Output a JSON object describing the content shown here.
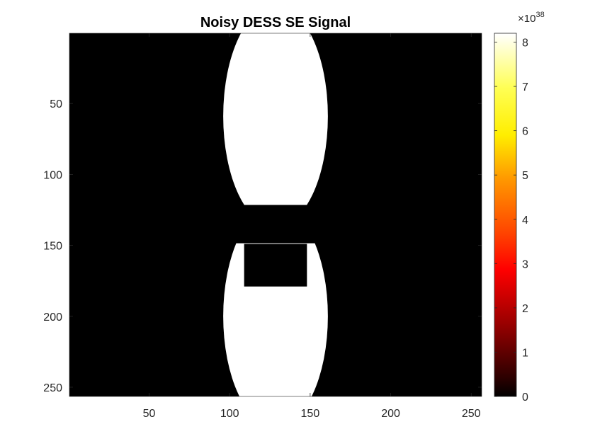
{
  "chart_data": {
    "type": "heatmap",
    "title": "Noisy DESS SE Signal",
    "colormap": "hot",
    "x_range": [
      1,
      256
    ],
    "y_range": [
      1,
      256
    ],
    "y_reversed": true,
    "x_ticks": [
      "50",
      "100",
      "150",
      "200",
      "250"
    ],
    "y_ticks": [
      "50",
      "100",
      "150",
      "200",
      "250"
    ],
    "regions": [
      {
        "shape": "ellipse",
        "center": [
          128.5,
          59
        ],
        "radius": [
          32.5,
          78
        ],
        "clip_y": [
          1,
          121
        ],
        "value": 8.2e+38
      },
      {
        "shape": "ellipse",
        "center": [
          128.5,
          200
        ],
        "radius": [
          32.5,
          78
        ],
        "clip_y": [
          149,
          256
        ],
        "value": 8.2e+38
      },
      {
        "shape": "rect",
        "x": [
          109,
          148
        ],
        "y": [
          149,
          179
        ],
        "value": 0
      }
    ],
    "background_value": 0,
    "colorbar": {
      "min": 0,
      "max": 8.2,
      "ticks": [
        "0",
        "1",
        "2",
        "3",
        "4",
        "5",
        "6",
        "7",
        "8"
      ],
      "exponent_base": "×10",
      "exponent": "38"
    }
  }
}
